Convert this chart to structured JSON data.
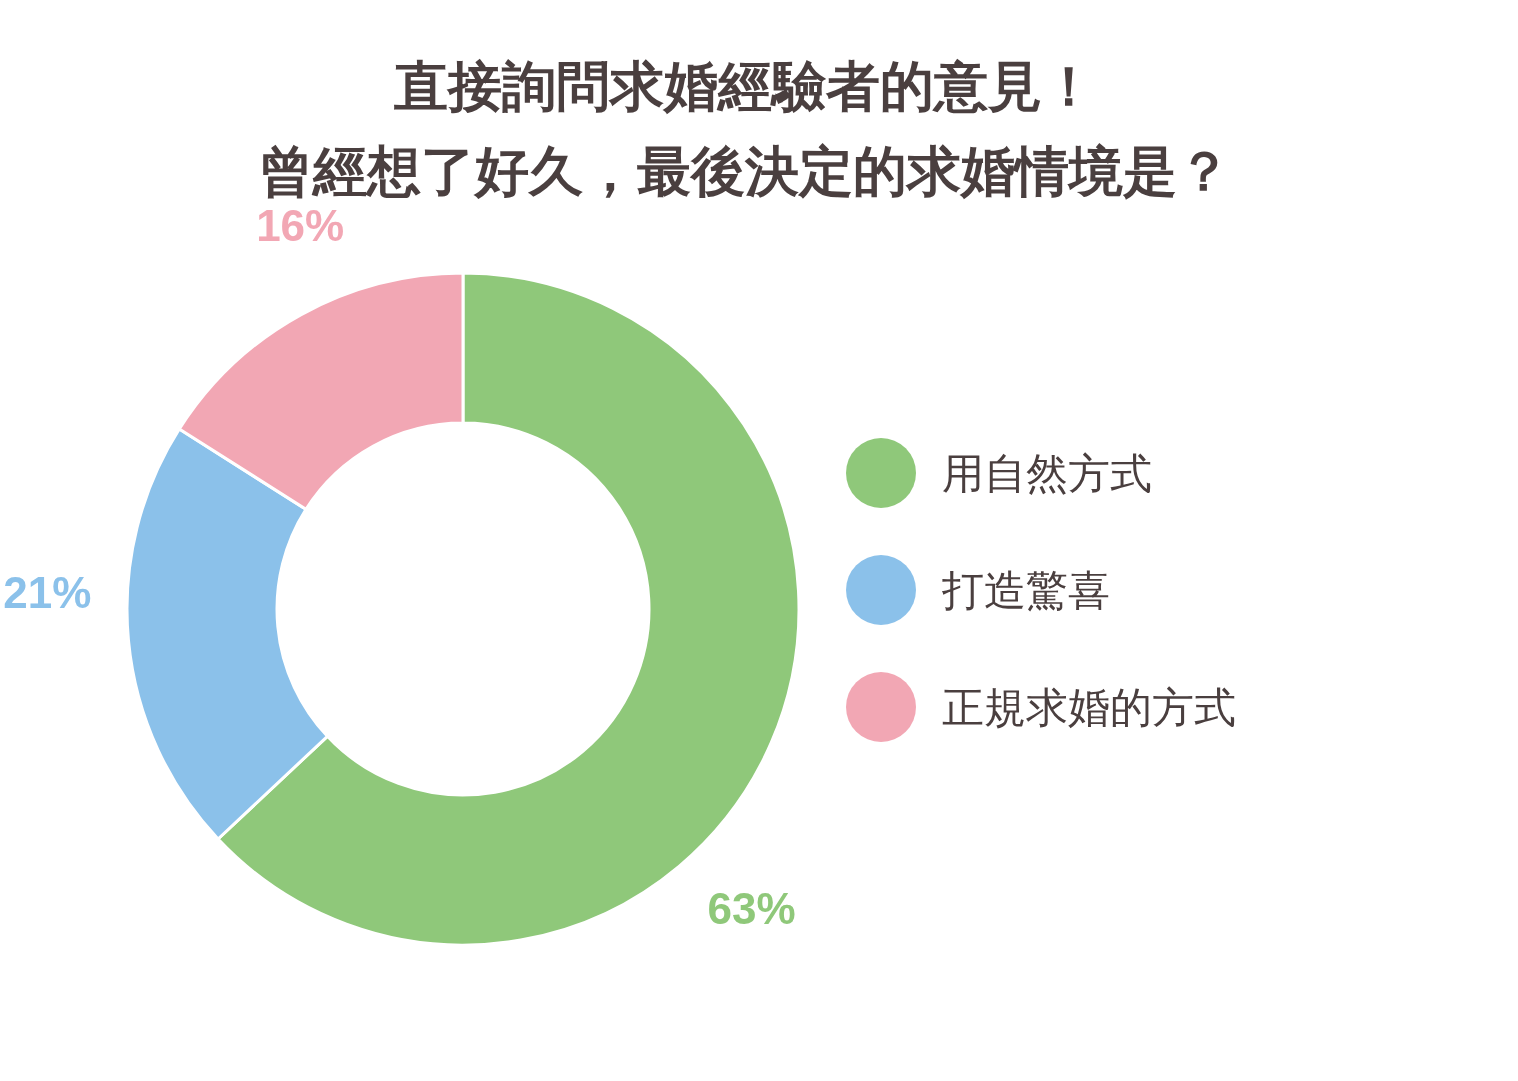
{
  "chart_data": {
    "type": "donut",
    "title": "直接詢問求婚經驗者的意見！",
    "subtitle": "曾經想了好久，最後決定的求婚情境是？",
    "categories": [
      "用自然方式",
      "打造驚喜",
      "正規求婚的方式"
    ],
    "values": [
      63,
      21,
      16
    ],
    "colors": [
      "#8fc87a",
      "#8bc1ea",
      "#f2a7b4"
    ],
    "value_labels": [
      "63%",
      "21%",
      "16%"
    ],
    "legend": "right"
  }
}
